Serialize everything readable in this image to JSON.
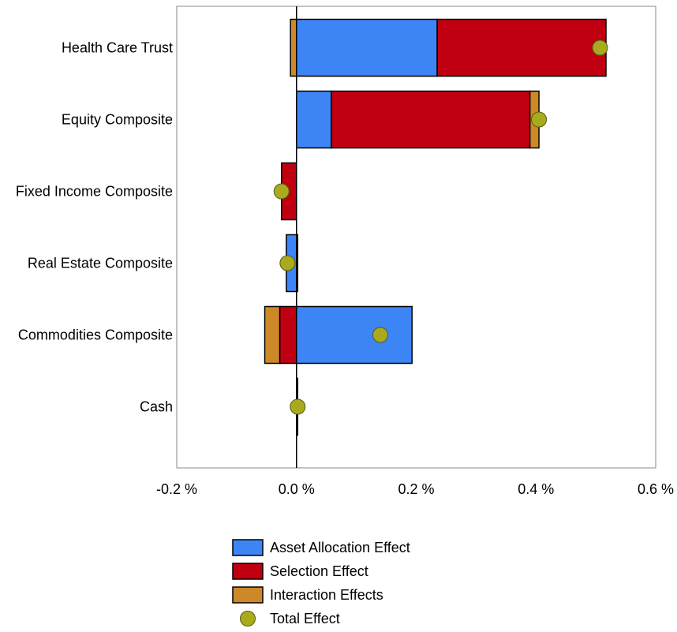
{
  "chart_data": {
    "type": "bar",
    "orientation": "horizontal",
    "stacked": true,
    "title": "",
    "xlabel": "",
    "ylabel": "",
    "xlim": [
      -0.2,
      0.6
    ],
    "x_ticks": [
      -0.2,
      0.0,
      0.2,
      0.4,
      0.6
    ],
    "x_tick_labels": [
      "-0.2 %",
      "0.0 %",
      "0.2 %",
      "0.4 %",
      "0.6 %"
    ],
    "grid": false,
    "legend_position": "bottom",
    "categories": [
      "Health Care Trust",
      "Equity Composite",
      "Fixed Income Composite",
      "Real Estate Composite",
      "Commodities Composite",
      "Cash"
    ],
    "series": [
      {
        "name": "Asset Allocation Effect",
        "color": "#3d85f5",
        "values": [
          0.235,
          0.058,
          0.0,
          -0.017,
          0.193,
          0.0
        ]
      },
      {
        "name": "Selection Effect",
        "color": "#c00010",
        "values": [
          0.282,
          0.332,
          -0.025,
          0.0,
          -0.028,
          0.0
        ]
      },
      {
        "name": "Interaction Effects",
        "color": "#cd8928",
        "values": [
          -0.01,
          0.015,
          0.0,
          0.002,
          -0.025,
          0.002
        ]
      }
    ],
    "total_effect": {
      "name": "Total Effect",
      "color": "#a8ab1e",
      "values": [
        0.507,
        0.405,
        -0.025,
        -0.015,
        0.14,
        0.002
      ]
    }
  }
}
